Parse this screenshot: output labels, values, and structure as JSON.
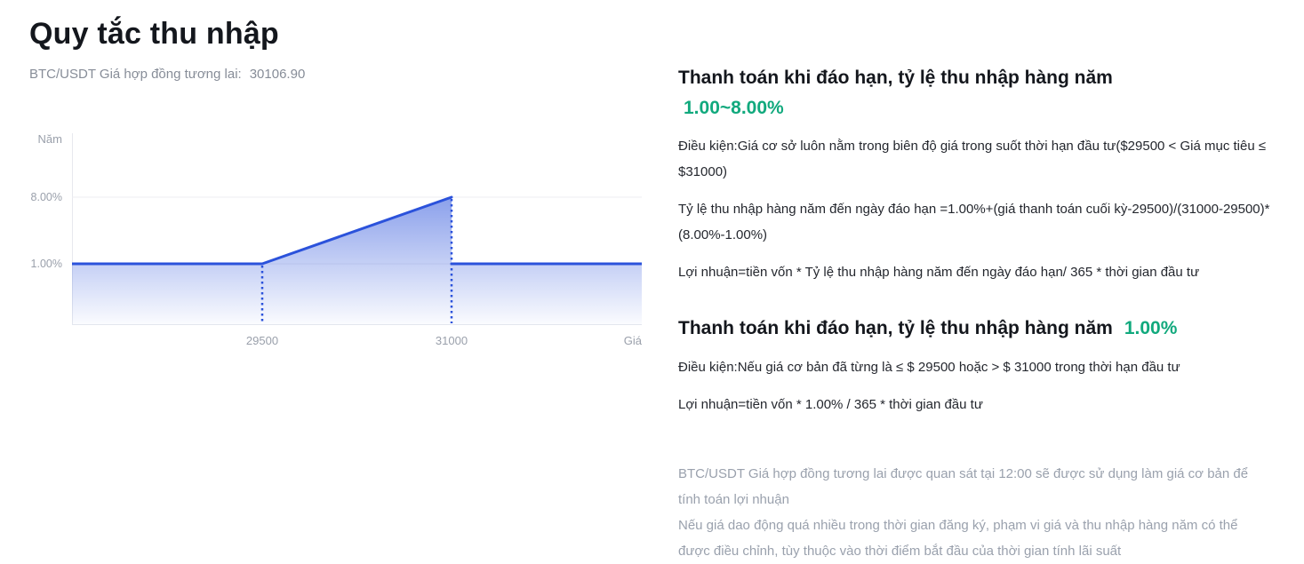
{
  "page": {
    "title": "Quy tắc thu nhập",
    "subtitle_label": "BTC/USDT Giá hợp đồng tương lai:",
    "subtitle_value": "30106.90"
  },
  "chart_data": {
    "type": "area",
    "title": "",
    "x_axis_label": "Giá",
    "y_axis_label": "Năm",
    "x_tick_labels": [
      "29500",
      "31000"
    ],
    "y_tick_labels": [
      "8.00%",
      "1.00%"
    ],
    "y_tick_pcts": [
      8.0,
      1.0
    ],
    "series": [
      {
        "name": "Tỷ lệ thu nhập hàng năm",
        "segments": [
          {
            "from_x": "left-edge",
            "to_x": 29500,
            "yield_pct_from": 1.0,
            "yield_pct_to": 1.0
          },
          {
            "from_x": 29500,
            "to_x": 31000,
            "yield_pct_from": 1.0,
            "yield_pct_to": 8.0
          },
          {
            "from_x": 31000,
            "to_x": "right-edge",
            "yield_pct_from": 1.0,
            "yield_pct_to": 1.0
          }
        ]
      }
    ],
    "dotted_guides_x": [
      29500,
      31000
    ],
    "line_color": "#2b52db",
    "fill_top_color": "rgba(43,82,219,0.55)",
    "fill_bottom_color": "rgba(43,82,219,0.02)",
    "axis_color": "#e7e9ee",
    "grid_color": "#ededf2",
    "legend": "off",
    "grid": "single horizontal gridline at 8.00%"
  },
  "sections": [
    {
      "heading": "Thanh toán khi đáo hạn, tỷ lệ thu nhập hàng năm",
      "rate": "1.00~8.00%",
      "paragraphs": [
        "Điều kiện:Giá cơ sở luôn nằm trong biên độ giá trong suốt thời hạn đầu tư($29500 < Giá mục tiêu ≤ $31000)",
        "Tỷ lệ thu nhập hàng năm đến ngày đáo hạn =1.00%+(giá thanh toán cuối kỳ-29500)/(31000-29500)*(8.00%-1.00%)",
        "Lợi nhuận=tiền vốn * Tỷ lệ thu nhập hàng năm đến ngày đáo hạn/ 365 * thời gian đầu tư"
      ]
    },
    {
      "heading": "Thanh toán khi đáo hạn, tỷ lệ thu nhập hàng năm",
      "rate": "1.00%",
      "paragraphs": [
        "Điều kiện:Nếu giá cơ bản đã từng là ≤ $ 29500 hoặc > $ 31000 trong thời hạn đầu tư",
        "Lợi nhuận=tiền vốn * 1.00% / 365 * thời gian đầu tư"
      ]
    }
  ],
  "footnotes": [
    "BTC/USDT Giá hợp đồng tương lai được quan sát tại 12:00 sẽ được sử dụng làm giá cơ bản để tính toán lợi nhuận",
    "Nếu giá dao động quá nhiều trong thời gian đăng ký, phạm vi giá và thu nhập hàng năm có thể được điều chỉnh, tùy thuộc vào thời điểm bắt đầu của thời gian tính lãi suất"
  ],
  "colors": {
    "accent_green": "#11a97d",
    "accent_blue": "#2b52db",
    "muted_text": "#9aa1ad"
  }
}
